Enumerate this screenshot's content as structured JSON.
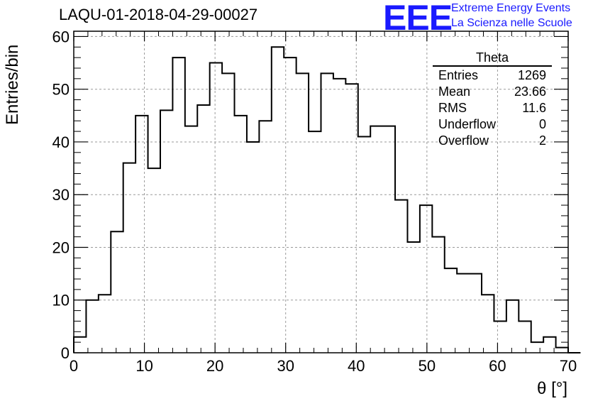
{
  "chart_data": {
    "type": "bar",
    "title": "LAQU-01-2018-04-29-00027",
    "xlabel": "θ [°]",
    "ylabel": "Entries/bin",
    "xlim": [
      0,
      70
    ],
    "ylim": [
      0,
      61
    ],
    "bin_width": 1.75,
    "x_ticks": [
      "0",
      "10",
      "20",
      "30",
      "40",
      "50",
      "60",
      "70"
    ],
    "y_ticks": [
      "0",
      "10",
      "20",
      "30",
      "40",
      "50",
      "60"
    ],
    "grid": true,
    "values": [
      3,
      10,
      11,
      23,
      36,
      45,
      35,
      46,
      56,
      43,
      47,
      55,
      53,
      45,
      40,
      44,
      58,
      56,
      53,
      42,
      53,
      52,
      51,
      41,
      43,
      43,
      29,
      21,
      28,
      22,
      16,
      15,
      15,
      11,
      6,
      10,
      6,
      2,
      3,
      1,
      0
    ]
  },
  "stats": {
    "title": "Theta",
    "rows": [
      {
        "label": "Entries",
        "value": "1269"
      },
      {
        "label": "Mean",
        "value": "23.66"
      },
      {
        "label": "RMS",
        "value": "11.6"
      },
      {
        "label": "Underflow",
        "value": "0"
      },
      {
        "label": "Overflow",
        "value": "2"
      }
    ]
  },
  "logo": {
    "mark": "EEE",
    "line1": "Extreme Energy Events",
    "line2": "La Scienza nelle Scuole",
    "color": "#1a1aff"
  }
}
